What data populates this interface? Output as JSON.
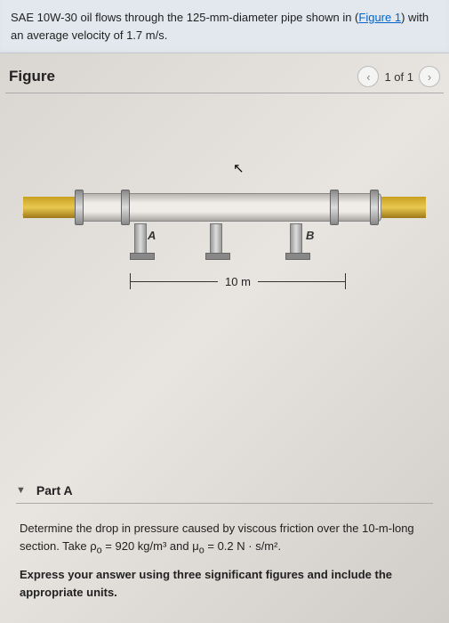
{
  "problem": {
    "text_before_link": "SAE 10W-30 oil flows through the 125-mm-diameter pipe shown in (",
    "link_text": "Figure 1",
    "text_after_link": ") with an average velocity of 1.7 m/s."
  },
  "figure": {
    "title": "Figure",
    "pager_text": "1 of 1",
    "prev_symbol": "‹",
    "next_symbol": "›",
    "point_a": "A",
    "point_b": "B",
    "dimension": "10 m",
    "flow_arrow": "→",
    "cursor_glyph": "↖",
    "pipe_colors": {
      "body_light": "#f0ece8",
      "body_dark": "#a8a4a0",
      "gold_light": "#e8c850",
      "gold_dark": "#a07818"
    },
    "supports_x": [
      125,
      210,
      300
    ],
    "flanges_x": [
      8,
      60,
      295,
      340
    ]
  },
  "part": {
    "label": "Part A",
    "caret": "▼",
    "question_html": "Determine the drop in pressure caused by viscous friction over the 10-m-long section. Take ρ<sub>o</sub> = 920 kg/m³ and μ<sub>o</sub> = 0.2 N · s/m².",
    "instruction": "Express your answer using three significant figures and include the appropriate units."
  }
}
